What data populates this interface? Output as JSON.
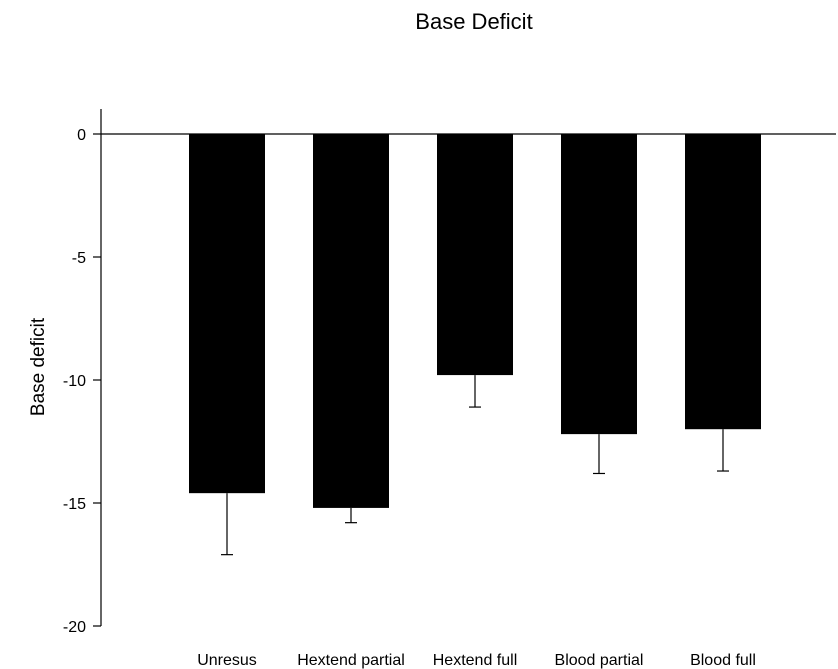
{
  "chart_data": {
    "type": "bar",
    "title": "Base Deficit",
    "xlabel": "",
    "ylabel": "Base deficit",
    "categories": [
      "Unresus",
      "Hextend partial",
      "Hextend full",
      "Blood partial",
      "Blood full"
    ],
    "values": [
      -14.6,
      -15.2,
      -9.8,
      -12.2,
      -12.0
    ],
    "error_bars": [
      2.5,
      0.6,
      1.3,
      1.6,
      1.7
    ],
    "error_direction": "down",
    "ylim": [
      -20,
      0
    ],
    "yticks": [
      0,
      -5,
      -10,
      -15,
      -20
    ],
    "grid": false,
    "legend": "none",
    "bar_color": "#000000"
  }
}
